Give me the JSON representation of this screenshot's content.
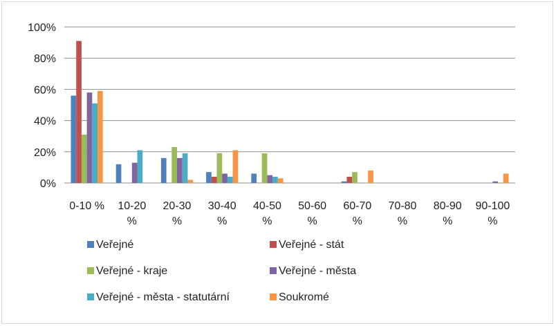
{
  "chart_data": {
    "type": "bar",
    "categories": [
      [
        "0-10 %"
      ],
      [
        "10-20",
        "%"
      ],
      [
        "20-30",
        "%"
      ],
      [
        "30-40",
        "%"
      ],
      [
        "40-50",
        "%"
      ],
      [
        "50-60",
        "%"
      ],
      [
        "60-70",
        "%"
      ],
      [
        "70-80",
        "%"
      ],
      [
        "80-90",
        "%"
      ],
      [
        "90-100",
        "%"
      ]
    ],
    "series": [
      {
        "name": "Veřejné",
        "color": "#4f81bd",
        "values": [
          0.56,
          0.12,
          0.16,
          0.07,
          0.06,
          0,
          0.01,
          0,
          0,
          0
        ]
      },
      {
        "name": "Veřejné - stát",
        "color": "#c0504d",
        "values": [
          0.91,
          0,
          0,
          0.04,
          0,
          0,
          0.04,
          0,
          0,
          0
        ]
      },
      {
        "name": "Veřejné - kraje",
        "color": "#9bbb59",
        "values": [
          0.31,
          0,
          0.23,
          0.19,
          0.19,
          0,
          0.07,
          0,
          0,
          0
        ]
      },
      {
        "name": "Veřejné - města",
        "color": "#8064a2",
        "values": [
          0.58,
          0.13,
          0.16,
          0.06,
          0.05,
          0,
          0,
          0,
          0,
          0.01
        ]
      },
      {
        "name": "Veřejné - města - statutární",
        "color": "#4bacc6",
        "values": [
          0.51,
          0.21,
          0.19,
          0.04,
          0.04,
          0,
          0,
          0,
          0,
          0
        ]
      },
      {
        "name": "Soukromé",
        "color": "#f79646",
        "values": [
          0.59,
          0,
          0.02,
          0.21,
          0.03,
          0,
          0.08,
          0,
          0,
          0.06
        ]
      }
    ],
    "yticks": [
      "0%",
      "20%",
      "40%",
      "60%",
      "80%",
      "100%"
    ],
    "ylim": [
      0,
      1
    ],
    "grid": true,
    "legend_position": "bottom"
  }
}
